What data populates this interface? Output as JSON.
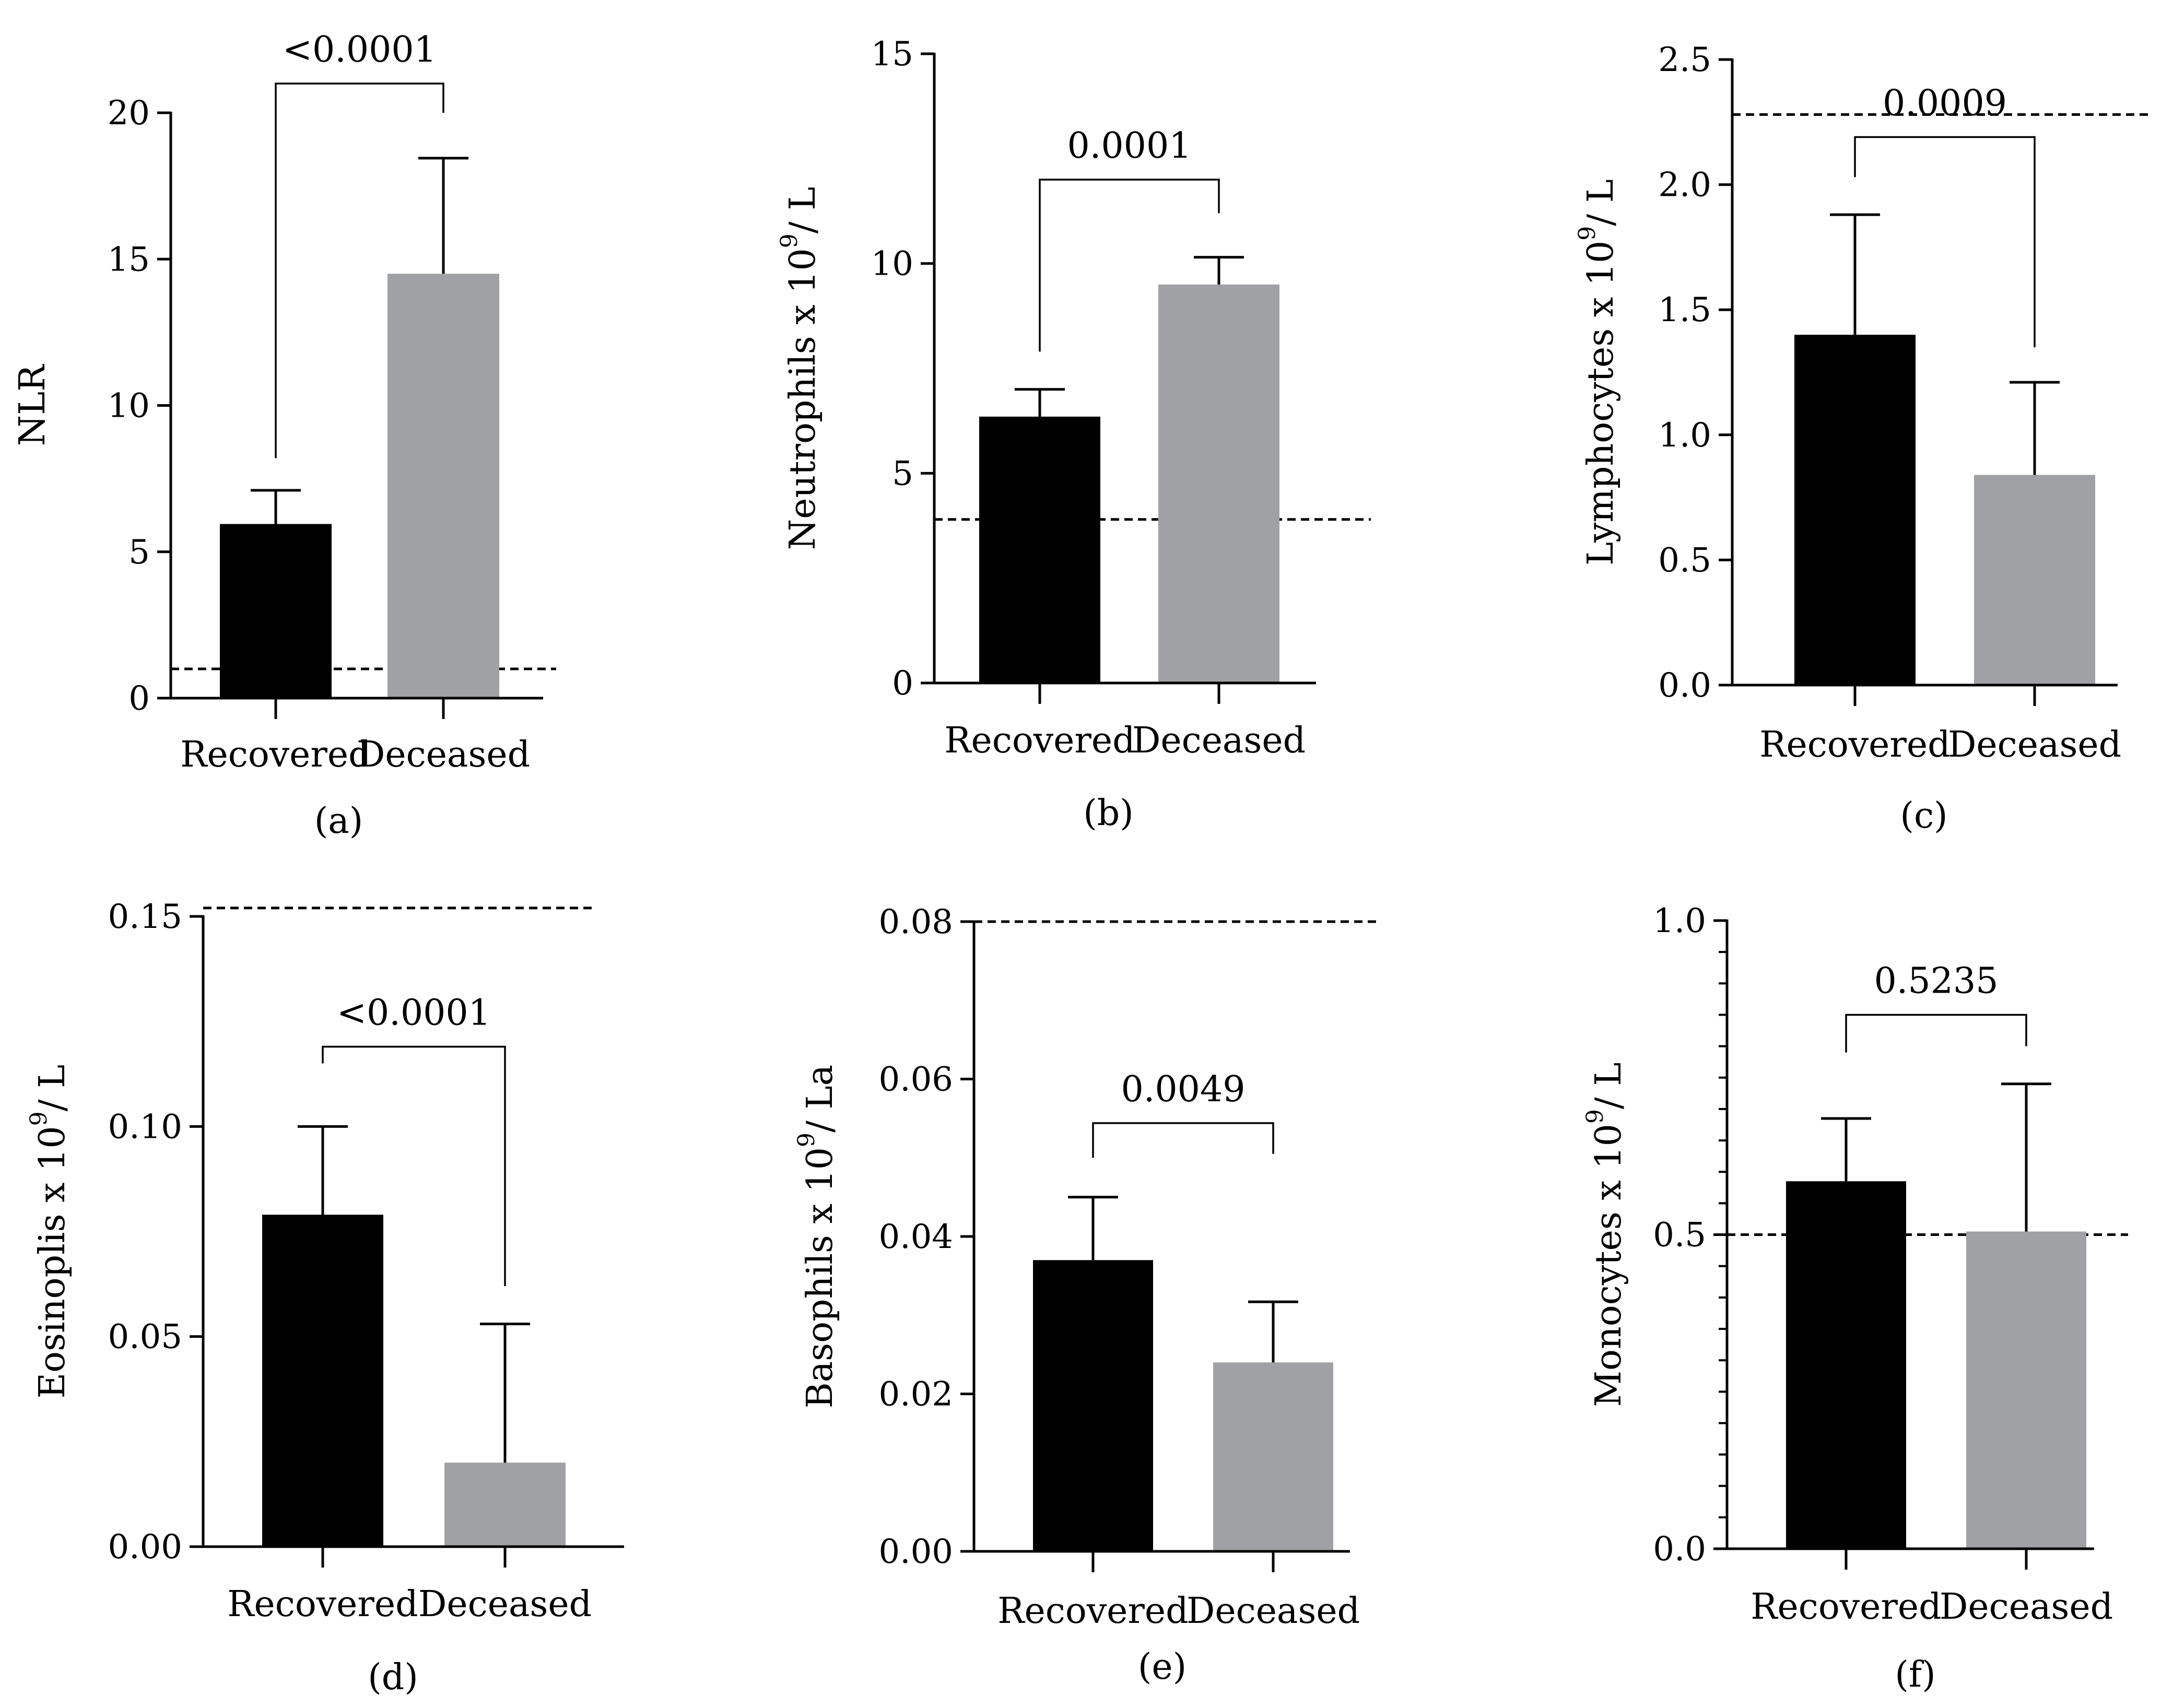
{
  "chart_data": [
    {
      "id": "a",
      "type": "bar",
      "panel_label": "(a)",
      "ylabel": "NLR",
      "ylabel_sup": "",
      "ylabel_tail": "",
      "categories": [
        "Recovered",
        "Deceased"
      ],
      "values": [
        5.95,
        14.5
      ],
      "errors": [
        7.1,
        18.45
      ],
      "colors": [
        "#000000",
        "#a0a1a5"
      ],
      "ylim": [
        0,
        20
      ],
      "yticks": [
        0,
        5,
        10,
        15,
        20
      ],
      "ytick_labels": [
        "0",
        "5",
        "10",
        "15",
        "20"
      ],
      "minor_ticks": [],
      "ref_line": 1.0,
      "pvalue": "<0.0001",
      "bracket_y": 21.0,
      "bracket_left_end": 8.2,
      "bracket_right_end": 20.0
    },
    {
      "id": "b",
      "type": "bar",
      "panel_label": "(b)",
      "ylabel": "Neutrophils x 10",
      "ylabel_sup": "9",
      "ylabel_tail": "/ L",
      "categories": [
        "Recovered",
        "Deceased"
      ],
      "values": [
        6.35,
        9.5
      ],
      "errors": [
        7.0,
        10.15
      ],
      "colors": [
        "#000000",
        "#a0a1a5"
      ],
      "ylim": [
        0,
        15
      ],
      "yticks": [
        0,
        5,
        10,
        15
      ],
      "ytick_labels": [
        "0",
        "5",
        "10",
        "15"
      ],
      "minor_ticks": [],
      "ref_line": 3.9,
      "pvalue": "0.0001",
      "bracket_y": 12.0,
      "bracket_left_end": 7.9,
      "bracket_right_end": 11.2
    },
    {
      "id": "c",
      "type": "bar",
      "panel_label": "(c)",
      "ylabel": "Lymphocytes x 10",
      "ylabel_sup": "9",
      "ylabel_tail": "/ L",
      "categories": [
        "Recovered",
        "Deceased"
      ],
      "values": [
        1.4,
        0.84
      ],
      "errors": [
        1.88,
        1.21
      ],
      "colors": [
        "#000000",
        "#a0a1a5"
      ],
      "ylim": [
        0,
        2.5
      ],
      "yticks": [
        0,
        0.5,
        1.0,
        1.5,
        2.0,
        2.5
      ],
      "ytick_labels": [
        "0.0",
        "0.5",
        "1.0",
        "1.5",
        "2.0",
        "2.5"
      ],
      "minor_ticks": [],
      "ref_line": 2.28,
      "pvalue": "0.0009",
      "bracket_y": 2.19,
      "bracket_left_end": 2.03,
      "bracket_right_end": 1.35
    },
    {
      "id": "d",
      "type": "bar",
      "panel_label": "(d)",
      "ylabel": "Eosinoplis x 10",
      "ylabel_sup": "9",
      "ylabel_tail": "/ L",
      "categories": [
        "Recovered",
        "Deceased"
      ],
      "values": [
        0.079,
        0.02
      ],
      "errors": [
        0.1,
        0.053
      ],
      "colors": [
        "#000000",
        "#a0a1a5"
      ],
      "ylim": [
        0,
        0.15
      ],
      "yticks": [
        0,
        0.05,
        0.1,
        0.15
      ],
      "ytick_labels": [
        "0.00",
        "0.05",
        "0.10",
        "0.15"
      ],
      "minor_ticks": [],
      "ref_line": 0.152,
      "ref_line_2": 0.0,
      "pvalue": "<0.0001",
      "bracket_y": 0.119,
      "bracket_left_end": 0.115,
      "bracket_right_end": 0.062
    },
    {
      "id": "e",
      "type": "bar",
      "panel_label": "(e)",
      "ylabel": "Basophils x 10",
      "ylabel_sup": "9",
      "ylabel_tail": "/ La",
      "categories": [
        "Recovered",
        "Deceased"
      ],
      "values": [
        0.037,
        0.024
      ],
      "errors": [
        0.045,
        0.0317
      ],
      "colors": [
        "#000000",
        "#a0a1a5"
      ],
      "ylim": [
        0,
        0.08
      ],
      "yticks": [
        0,
        0.02,
        0.04,
        0.06,
        0.08
      ],
      "ytick_labels": [
        "0.00",
        "0.02",
        "0.04",
        "0.06",
        "0.08"
      ],
      "minor_ticks": [],
      "ref_line": 0.08,
      "pvalue": "0.0049",
      "bracket_y": 0.0544,
      "bracket_left_end": 0.05,
      "bracket_right_end": 0.0505
    },
    {
      "id": "f",
      "type": "bar",
      "panel_label": "(f)",
      "ylabel": "Monocytes x 10",
      "ylabel_sup": "9",
      "ylabel_tail": "/ L",
      "categories": [
        "Recovered",
        "Deceased"
      ],
      "values": [
        0.585,
        0.505
      ],
      "errors": [
        0.685,
        0.74
      ],
      "colors": [
        "#000000",
        "#a0a1a5"
      ],
      "ylim": [
        0,
        1.0
      ],
      "yticks": [
        0,
        0.5,
        1.0
      ],
      "ytick_labels": [
        "0.0",
        "0.5",
        "1.0"
      ],
      "minor_ticks": [
        0.05,
        0.1,
        0.15,
        0.2,
        0.25,
        0.3,
        0.35,
        0.4,
        0.45,
        0.55,
        0.6,
        0.65,
        0.7,
        0.75,
        0.8,
        0.85,
        0.9,
        0.95
      ],
      "ref_line": 0.5,
      "pvalue": "0.5235",
      "bracket_y": 0.85,
      "bracket_left_end": 0.79,
      "bracket_right_end": 0.8
    }
  ]
}
